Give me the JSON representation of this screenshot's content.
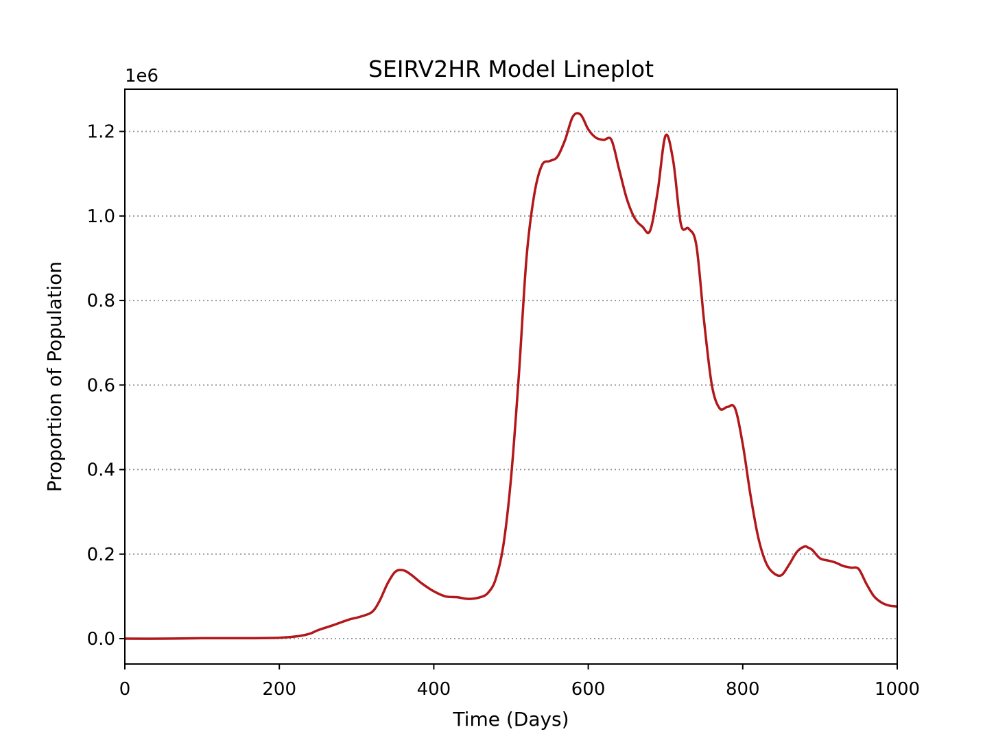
{
  "chart_data": {
    "type": "line",
    "title": "SEIRV2HR Model Lineplot",
    "xlabel": "Time (Days)",
    "ylabel": "Proportion of Population",
    "y_offset_label": "1e6",
    "xlim": [
      0,
      1000
    ],
    "ylim": [
      -0.06,
      1.3
    ],
    "y_scale_note": "values in units of 1e6",
    "x_ticks": [
      0,
      200,
      400,
      600,
      800,
      1000
    ],
    "x_tick_labels": [
      "0",
      "200",
      "400",
      "600",
      "800",
      "1000"
    ],
    "y_ticks": [
      0.0,
      0.2,
      0.4,
      0.6,
      0.8,
      1.0,
      1.2
    ],
    "y_tick_labels": [
      "0.0",
      "0.2",
      "0.4",
      "0.6",
      "0.8",
      "1.0",
      "1.2"
    ],
    "grid": "horizontal dotted",
    "legend": "none",
    "series": [
      {
        "color": "#b2171a",
        "x": [
          0,
          50,
          100,
          150,
          200,
          225,
          240,
          250,
          270,
          290,
          305,
          320,
          330,
          340,
          350,
          360,
          370,
          385,
          400,
          415,
          430,
          445,
          460,
          470,
          480,
          490,
          500,
          510,
          520,
          530,
          540,
          550,
          560,
          570,
          580,
          590,
          600,
          610,
          620,
          630,
          640,
          650,
          660,
          670,
          680,
          690,
          700,
          710,
          720,
          730,
          740,
          750,
          760,
          770,
          780,
          790,
          800,
          810,
          820,
          830,
          840,
          850,
          860,
          870,
          880,
          885,
          890,
          900,
          910,
          920,
          930,
          940,
          950,
          960,
          970,
          980,
          990,
          1000
        ],
        "values": [
          0.0,
          0.0,
          0.001,
          0.001,
          0.002,
          0.006,
          0.012,
          0.02,
          0.032,
          0.045,
          0.052,
          0.063,
          0.09,
          0.13,
          0.158,
          0.162,
          0.152,
          0.13,
          0.112,
          0.1,
          0.098,
          0.094,
          0.098,
          0.108,
          0.14,
          0.22,
          0.38,
          0.62,
          0.9,
          1.05,
          1.12,
          1.13,
          1.14,
          1.18,
          1.235,
          1.24,
          1.205,
          1.185,
          1.18,
          1.18,
          1.11,
          1.04,
          0.995,
          0.975,
          0.965,
          1.06,
          1.19,
          1.13,
          0.98,
          0.97,
          0.93,
          0.75,
          0.6,
          0.545,
          0.548,
          0.545,
          0.46,
          0.34,
          0.24,
          0.18,
          0.155,
          0.15,
          0.175,
          0.205,
          0.218,
          0.215,
          0.21,
          0.19,
          0.185,
          0.18,
          0.172,
          0.168,
          0.165,
          0.13,
          0.1,
          0.085,
          0.078,
          0.076
        ]
      }
    ]
  }
}
